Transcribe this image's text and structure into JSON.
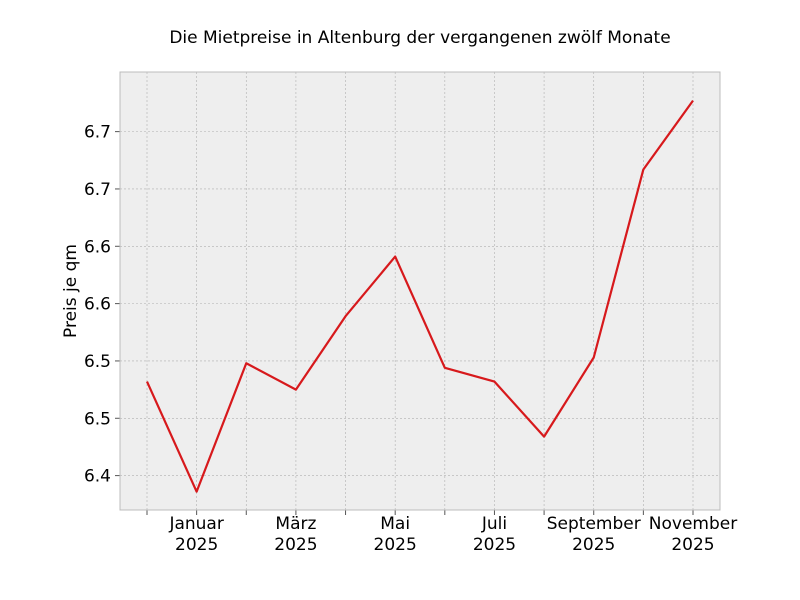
{
  "chart_data": {
    "type": "line",
    "title": "Die Mietpreise in Altenburg der vergangenen zwölf Monate",
    "xlabel": "",
    "ylabel": "Preis je qm",
    "x": [
      "2024-12",
      "2025-01",
      "2025-02",
      "2025-03",
      "2025-04",
      "2025-05",
      "2025-06",
      "2025-07",
      "2025-08",
      "2025-09",
      "2025-10",
      "2025-11"
    ],
    "x_ticks": [
      {
        "x": "2024-12",
        "label": [
          "",
          ""
        ]
      },
      {
        "x": "2025-01",
        "label": [
          "Januar",
          "2025"
        ]
      },
      {
        "x": "2025-02",
        "label": [
          "",
          ""
        ]
      },
      {
        "x": "2025-03",
        "label": [
          "März",
          "2025"
        ]
      },
      {
        "x": "2025-04",
        "label": [
          "",
          ""
        ]
      },
      {
        "x": "2025-05",
        "label": [
          "Mai",
          "2025"
        ]
      },
      {
        "x": "2025-06",
        "label": [
          "",
          ""
        ]
      },
      {
        "x": "2025-07",
        "label": [
          "Juli",
          "2025"
        ]
      },
      {
        "x": "2025-08",
        "label": [
          "",
          ""
        ]
      },
      {
        "x": "2025-09",
        "label": [
          "September",
          "2025"
        ]
      },
      {
        "x": "2025-10",
        "label": [
          "",
          ""
        ]
      },
      {
        "x": "2025-11",
        "label": [
          "November",
          "2025"
        ]
      }
    ],
    "series": [
      {
        "values": [
          6.482,
          6.386,
          6.498,
          6.475,
          6.539,
          6.591,
          6.494,
          6.482,
          6.434,
          6.503,
          6.667,
          6.727
        ]
      }
    ],
    "ylim": [
      6.37,
      6.752
    ],
    "yticks": [
      {
        "value": 6.4,
        "label": "6.4"
      },
      {
        "value": 6.45,
        "label": "6.5"
      },
      {
        "value": 6.5,
        "label": "6.5"
      },
      {
        "value": 6.55,
        "label": "6.6"
      },
      {
        "value": 6.6,
        "label": "6.6"
      },
      {
        "value": 6.65,
        "label": "6.7"
      },
      {
        "value": 6.7,
        "label": "6.7"
      }
    ],
    "grid": true,
    "colors": {
      "line": "#d7191c",
      "plot_bg": "#eeeeee",
      "grid": "#b0b0b0",
      "frame": "#bcbcbc"
    }
  }
}
